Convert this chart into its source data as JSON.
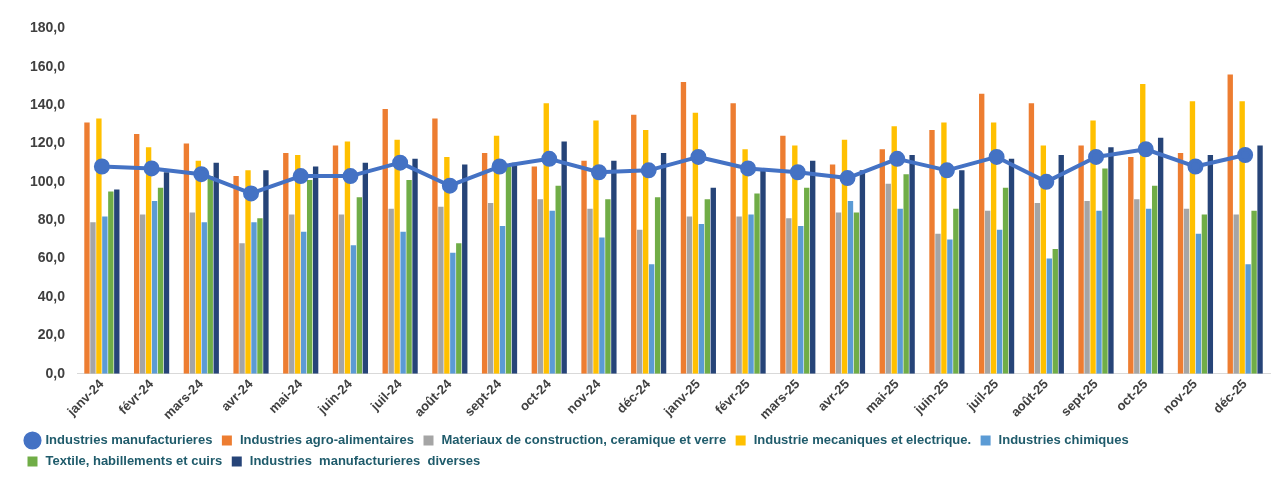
{
  "chart_data": {
    "type": "bar",
    "categories": [
      "janv-24",
      "févr-24",
      "mars-24",
      "avr-24",
      "mai-24",
      "juin-24",
      "juil-24",
      "août-24",
      "sept-24",
      "oct-24",
      "nov-24",
      "déc-24",
      "janv-25",
      "févr-25",
      "mars-25",
      "avr-25",
      "mai-25",
      "juin-25",
      "juil-25",
      "août-25",
      "sept-25",
      "oct-25",
      "nov-25",
      "déc-25"
    ],
    "series": [
      {
        "name": "Industries agro-alimentaires",
        "color": "#ed7d31",
        "values": [
          131,
          125,
          120,
          103,
          115,
          119,
          138,
          133,
          115,
          108,
          111,
          135,
          152,
          141,
          124,
          109,
          117,
          127,
          146,
          141,
          119,
          113,
          115,
          156
        ]
      },
      {
        "name": "Materiaux de construction, ceramique et verre",
        "color": "#a5a5a5",
        "values": [
          79,
          83,
          84,
          68,
          83,
          83,
          86,
          87,
          89,
          91,
          86,
          75,
          82,
          82,
          81,
          84,
          99,
          73,
          85,
          89,
          90,
          91,
          86,
          83
        ]
      },
      {
        "name": "Industrie mecaniques et electrique.",
        "color": "#ffc000",
        "values": [
          133,
          118,
          111,
          106,
          114,
          121,
          122,
          113,
          124,
          141,
          132,
          127,
          136,
          117,
          119,
          122,
          129,
          131,
          131,
          119,
          132,
          151,
          142,
          142
        ]
      },
      {
        "name": "Industries chimiques",
        "color": "#5b9bd5",
        "values": [
          82,
          90,
          79,
          79,
          74,
          67,
          74,
          63,
          77,
          85,
          71,
          57,
          78,
          83,
          77,
          90,
          86,
          70,
          75,
          60,
          85,
          86,
          73,
          57
        ]
      },
      {
        "name": "Textile, habillements et cuirs",
        "color": "#70ad47",
        "values": [
          95,
          97,
          103,
          81,
          101,
          92,
          101,
          68,
          108,
          98,
          91,
          92,
          91,
          94,
          97,
          84,
          104,
          86,
          97,
          65,
          107,
          98,
          83,
          85
        ]
      },
      {
        "name": "Industries  manufacturieres  diverses",
        "color": "#264478",
        "values": [
          96,
          105,
          110,
          106,
          108,
          110,
          112,
          109,
          110,
          121,
          111,
          115,
          97,
          106,
          111,
          106,
          114,
          106,
          112,
          114,
          118,
          123,
          114,
          119
        ]
      },
      {
        "name": "Industries manufacturieres",
        "type": "line",
        "marker": "circle",
        "color": "#4472c4",
        "values": [
          108,
          107,
          104,
          94,
          103,
          103,
          110,
          98,
          108,
          112,
          105,
          106,
          113,
          107,
          105,
          102,
          112,
          106,
          113,
          100,
          113,
          117,
          108,
          114
        ]
      }
    ],
    "ylim": [
      0,
      180
    ],
    "yticks": [
      {
        "value": 0,
        "label": "0,0"
      },
      {
        "value": 20,
        "label": "20,0"
      },
      {
        "value": 40,
        "label": "40,0"
      },
      {
        "value": 60,
        "label": "60,0"
      },
      {
        "value": 80,
        "label": "80,0"
      },
      {
        "value": 100,
        "label": "100,0"
      },
      {
        "value": 120,
        "label": "120,0"
      },
      {
        "value": 140,
        "label": "140,0"
      },
      {
        "value": 160,
        "label": "160,0"
      },
      {
        "value": 180,
        "label": "180,0"
      }
    ],
    "legend": "bottom"
  }
}
